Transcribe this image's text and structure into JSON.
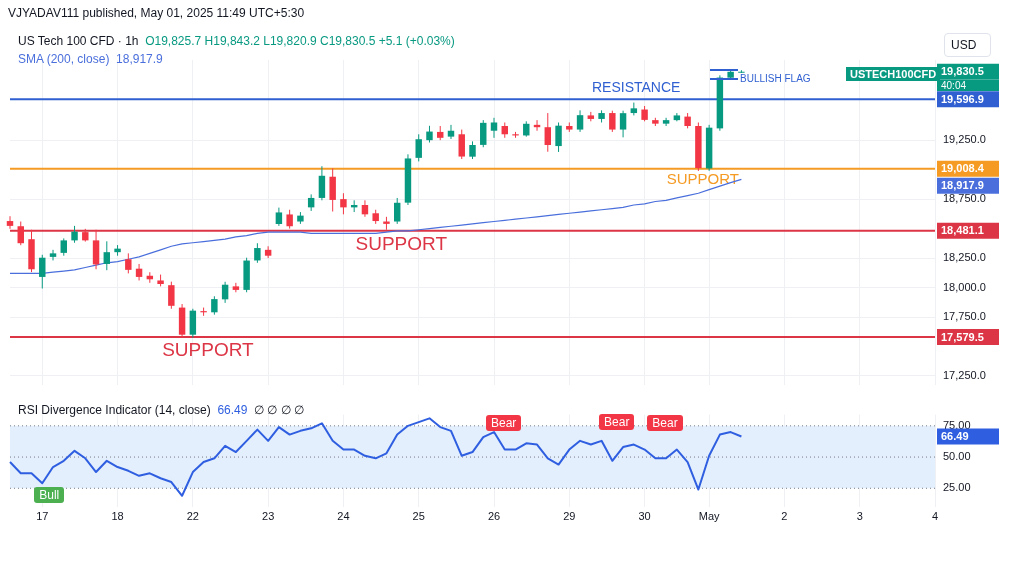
{
  "chart_data": [
    {
      "type": "candlestick",
      "title": "US Tech 100 CFD · 1h",
      "annotations": [
        "VJYADAV111 published, May 01, 2025 11:49 UTC+5:30",
        "O19,825.7 H19,843.2 L19,820.9 C19,830.5 +5.1 (+0.03%)",
        "USD",
        "BULLISH FLAG",
        "USTECH100CFD",
        "40:04",
        "18,917.9",
        "19,830.5",
        "19,596.9",
        "19,008.4",
        "18,917.9",
        "18,481.1",
        "17,579.5"
      ],
      "categories": [
        null,
        null,
        null,
        null,
        null,
        null,
        null,
        null,
        null,
        null,
        null,
        null,
        null,
        null,
        null,
        null,
        null,
        null,
        null,
        null,
        null,
        null,
        null,
        null,
        null,
        null,
        null,
        null,
        null,
        null,
        null,
        null,
        null,
        null,
        null,
        null,
        null,
        null,
        null,
        null,
        null,
        null,
        null,
        null,
        null,
        null,
        null,
        null,
        null,
        null,
        null,
        null,
        null,
        null,
        null,
        null,
        null,
        null,
        null,
        null,
        null,
        null,
        null,
        null,
        null,
        null,
        null,
        null,
        null,
        null,
        null,
        null,
        null,
        null,
        null,
        null,
        null,
        null,
        null,
        null,
        null,
        null,
        null,
        null,
        null,
        null,
        null
      ],
      "ohlc": [
        [
          18564,
          18605,
          18498,
          18523
        ],
        [
          18520,
          18560,
          18359,
          18376
        ],
        [
          18410,
          18490,
          18131,
          18155
        ],
        [
          18090,
          18278,
          17992,
          18253
        ],
        [
          18260,
          18320,
          18230,
          18290
        ],
        [
          18294,
          18417,
          18270,
          18400
        ],
        [
          18400,
          18523,
          18380,
          18474
        ],
        [
          18470,
          18498,
          18390,
          18400
        ],
        [
          18400,
          18490,
          18155,
          18196
        ],
        [
          18200,
          18392,
          18147,
          18300
        ],
        [
          18300,
          18360,
          18270,
          18330
        ],
        [
          18240,
          18290,
          18120,
          18150
        ],
        [
          18160,
          18200,
          18060,
          18090
        ],
        [
          18100,
          18130,
          18040,
          18070
        ],
        [
          18060,
          18110,
          18010,
          18030
        ],
        [
          18020,
          18050,
          17820,
          17845
        ],
        [
          17830,
          17860,
          17575,
          17600
        ],
        [
          17600,
          17820,
          17575,
          17804
        ],
        [
          17800,
          17830,
          17760,
          17790
        ],
        [
          17790,
          17926,
          17770,
          17902
        ],
        [
          17900,
          18049,
          17870,
          18024
        ],
        [
          18010,
          18040,
          17960,
          17980
        ],
        [
          17980,
          18253,
          17960,
          18229
        ],
        [
          18230,
          18376,
          18210,
          18335
        ],
        [
          18320,
          18350,
          18250,
          18270
        ],
        [
          18539,
          18678,
          18523,
          18637
        ],
        [
          18620,
          18660,
          18500,
          18520
        ],
        [
          18560,
          18640,
          18540,
          18610
        ],
        [
          18680,
          18790,
          18650,
          18760
        ],
        [
          18760,
          19029,
          18740,
          18948
        ],
        [
          18940,
          19010,
          18645,
          18743
        ],
        [
          18750,
          18800,
          18621,
          18680
        ],
        [
          18680,
          18740,
          18640,
          18700
        ],
        [
          18700,
          18740,
          18600,
          18621
        ],
        [
          18630,
          18660,
          18540,
          18564
        ],
        [
          18560,
          18600,
          18490,
          18540
        ],
        [
          18560,
          18760,
          18540,
          18719
        ],
        [
          18720,
          19130,
          18700,
          19095
        ],
        [
          19100,
          19300,
          19070,
          19258
        ],
        [
          19250,
          19372,
          19230,
          19323
        ],
        [
          19320,
          19370,
          19250,
          19270
        ],
        [
          19280,
          19380,
          19260,
          19330
        ],
        [
          19300,
          19340,
          19090,
          19111
        ],
        [
          19110,
          19240,
          19090,
          19209
        ],
        [
          19210,
          19420,
          19190,
          19397
        ],
        [
          19330,
          19440,
          19270,
          19400
        ],
        [
          19370,
          19400,
          19270,
          19300
        ],
        [
          19300,
          19320,
          19270,
          19290
        ],
        [
          19290,
          19410,
          19280,
          19389
        ],
        [
          19380,
          19420,
          19330,
          19360
        ],
        [
          19360,
          19480,
          19152,
          19209
        ],
        [
          19200,
          19400,
          19150,
          19373
        ],
        [
          19370,
          19400,
          19320,
          19340
        ],
        [
          19340,
          19503,
          19320,
          19462
        ],
        [
          19460,
          19490,
          19410,
          19430
        ],
        [
          19430,
          19503,
          19400,
          19480
        ],
        [
          19480,
          19500,
          19320,
          19340
        ],
        [
          19340,
          19500,
          19274,
          19479
        ],
        [
          19480,
          19569,
          19460,
          19520
        ],
        [
          19510,
          19540,
          19410,
          19422
        ],
        [
          19420,
          19440,
          19370,
          19390
        ],
        [
          19390,
          19440,
          19370,
          19420
        ],
        [
          19420,
          19480,
          19410,
          19460
        ],
        [
          19450,
          19480,
          19350,
          19370
        ],
        [
          19370,
          19400,
          18989,
          19013
        ],
        [
          19010,
          19380,
          18990,
          19356
        ],
        [
          19350,
          19800,
          19330,
          19781
        ],
        [
          19780,
          19850,
          19760,
          19830
        ],
        [
          19825.7,
          19843.2,
          19820.9,
          19830.5
        ],
        null,
        null,
        null,
        null,
        null,
        null,
        null,
        null,
        null,
        null,
        null,
        null,
        null,
        null,
        null,
        null,
        null,
        null
      ],
      "colors": [
        "#f23645",
        "#f23645",
        "#f23645",
        "#089981",
        "#089981",
        "#089981",
        "#089981",
        "#f23645",
        "#f23645",
        "#089981",
        "#089981",
        "#f23645",
        "#f23645",
        "#f23645",
        "#f23645",
        "#f23645",
        "#f23645",
        "#089981",
        "#f23645",
        "#089981",
        "#089981",
        "#f23645",
        "#089981",
        "#089981",
        "#f23645",
        "#089981",
        "#f23645",
        "#089981",
        "#089981",
        "#089981",
        "#f23645",
        "#f23645",
        "#089981",
        "#f23645",
        "#f23645",
        "#f23645",
        "#089981",
        "#089981",
        "#089981",
        "#089981",
        "#f23645",
        "#089981",
        "#f23645",
        "#089981",
        "#089981",
        "#089981",
        "#f23645",
        "#f23645",
        "#089981",
        "#f23645",
        "#f23645",
        "#089981",
        "#f23645",
        "#089981",
        "#f23645",
        "#089981",
        "#f23645",
        "#089981",
        "#089981",
        "#f23645",
        "#f23645",
        "#089981",
        "#089981",
        "#f23645",
        "#f23645",
        "#089981",
        "#089981",
        "#089981",
        "#089981",
        null,
        null,
        null,
        null,
        null,
        null,
        null,
        null,
        null,
        null,
        null,
        null,
        null,
        null,
        null,
        null,
        null,
        null
      ],
      "series": [
        {
          "name": "SMA (200, close)",
          "type": "line",
          "color": "#4a6fdc",
          "values": [
            18120,
            18120,
            18120,
            18120,
            18130,
            18140,
            18150,
            18170,
            18190,
            18210,
            18220,
            18240,
            18260,
            18290,
            18320,
            18350,
            18370,
            18380,
            18390,
            18400,
            18410,
            18430,
            18440,
            18460,
            18470,
            18470,
            18470,
            18470,
            18460,
            18460,
            18460,
            18460,
            18460,
            18460,
            18460,
            18470,
            18480,
            18480,
            18490,
            18500,
            18510,
            18520,
            18530,
            18540,
            18550,
            18560,
            18570,
            18580,
            18590,
            18600,
            18610,
            18620,
            18630,
            18640,
            18650,
            18660,
            18670,
            18680,
            18700,
            18710,
            18730,
            18740,
            18760,
            18780,
            18800,
            18830,
            18860,
            18890,
            18917.9,
            null,
            null,
            null,
            null,
            null,
            null,
            null,
            null,
            null,
            null,
            null,
            null,
            null,
            null,
            null,
            null,
            null,
            null
          ]
        }
      ],
      "ylim": [
        17170,
        19930
      ],
      "yticks": [
        {
          "value": 17250,
          "label": "17,250.0"
        },
        {
          "value": 17750,
          "label": "17,750.0"
        },
        {
          "value": 18000,
          "label": "18,000.0"
        },
        {
          "value": 18250,
          "label": "18,250.0"
        },
        {
          "value": 18750,
          "label": "18,750.0"
        },
        {
          "value": 19250,
          "label": "19,250.0"
        }
      ],
      "ref_lines": [
        {
          "axis": "y",
          "value": 19596.9,
          "label": "RESISTANCE",
          "color": "#2f5fd0"
        },
        {
          "axis": "y",
          "value": 19008.4,
          "label": "SUPPORT",
          "color": "#f59a23"
        },
        {
          "axis": "y",
          "value": 18481.1,
          "label": "SUPPORT",
          "color": "#dc3545"
        },
        {
          "axis": "y",
          "value": 17579.5,
          "label": "SUPPORT",
          "color": "#dc3545"
        }
      ],
      "grid": true,
      "tick_labels": "y"
    },
    {
      "type": "line",
      "title": "RSI Divergence Indicator (14, close)",
      "annotations": [
        "66.49",
        "∅ ∅ ∅ ∅",
        "Bull",
        "Bear",
        "Bear",
        "Bear",
        "66.49"
      ],
      "categories": [
        null,
        null,
        null,
        "17",
        null,
        null,
        null,
        null,
        null,
        null,
        "18",
        null,
        null,
        null,
        null,
        null,
        null,
        "22",
        null,
        null,
        null,
        null,
        null,
        null,
        "23",
        null,
        null,
        null,
        null,
        null,
        null,
        "24",
        null,
        null,
        null,
        null,
        null,
        null,
        "25",
        null,
        null,
        null,
        null,
        null,
        null,
        "26",
        null,
        null,
        null,
        null,
        null,
        null,
        "29",
        null,
        null,
        null,
        null,
        null,
        null,
        "30",
        null,
        null,
        null,
        null,
        null,
        "May",
        null,
        null,
        null,
        null,
        null,
        null,
        "2",
        null,
        null,
        null,
        null,
        null,
        null,
        "3",
        null,
        null,
        null,
        null,
        null,
        null,
        "4"
      ],
      "series": [
        {
          "color": "#2f5fe0",
          "values": [
            46,
            37,
            37,
            29,
            42,
            47,
            55,
            49,
            38,
            47,
            42,
            39,
            35,
            37,
            33,
            30,
            19,
            38,
            46,
            49,
            59,
            54,
            63,
            72,
            63,
            74,
            68,
            71,
            73,
            77,
            63,
            56,
            56,
            51,
            49,
            53,
            68,
            75,
            78,
            81,
            74,
            71,
            51,
            54,
            66,
            70,
            56,
            56,
            61,
            60,
            49,
            44,
            56,
            63,
            60,
            63,
            47,
            58,
            60,
            56,
            49,
            49,
            56,
            46,
            24,
            51,
            68,
            70,
            66.49,
            null,
            null,
            null,
            null,
            null,
            null,
            null,
            null,
            null,
            null,
            null,
            null,
            null,
            null,
            null,
            null,
            null,
            null
          ]
        }
      ],
      "ylim": [
        10,
        84
      ],
      "yticks": [
        {
          "value": 25,
          "label": "25.00"
        },
        {
          "value": 50,
          "label": "50.00"
        },
        {
          "value": 75,
          "label": "75.00"
        }
      ],
      "bands": [
        {
          "axis": "y",
          "from": 25,
          "to": 75,
          "color": "#e3effd"
        }
      ],
      "ref_lines": [
        {
          "axis": "y",
          "value": 75,
          "line_style": "dotted",
          "color": "#787b86"
        },
        {
          "axis": "y",
          "value": 50,
          "line_style": "dotted",
          "color": "#787b86"
        },
        {
          "axis": "y",
          "value": 25,
          "line_style": "dotted",
          "color": "#787b86"
        }
      ],
      "grid": "x"
    }
  ]
}
